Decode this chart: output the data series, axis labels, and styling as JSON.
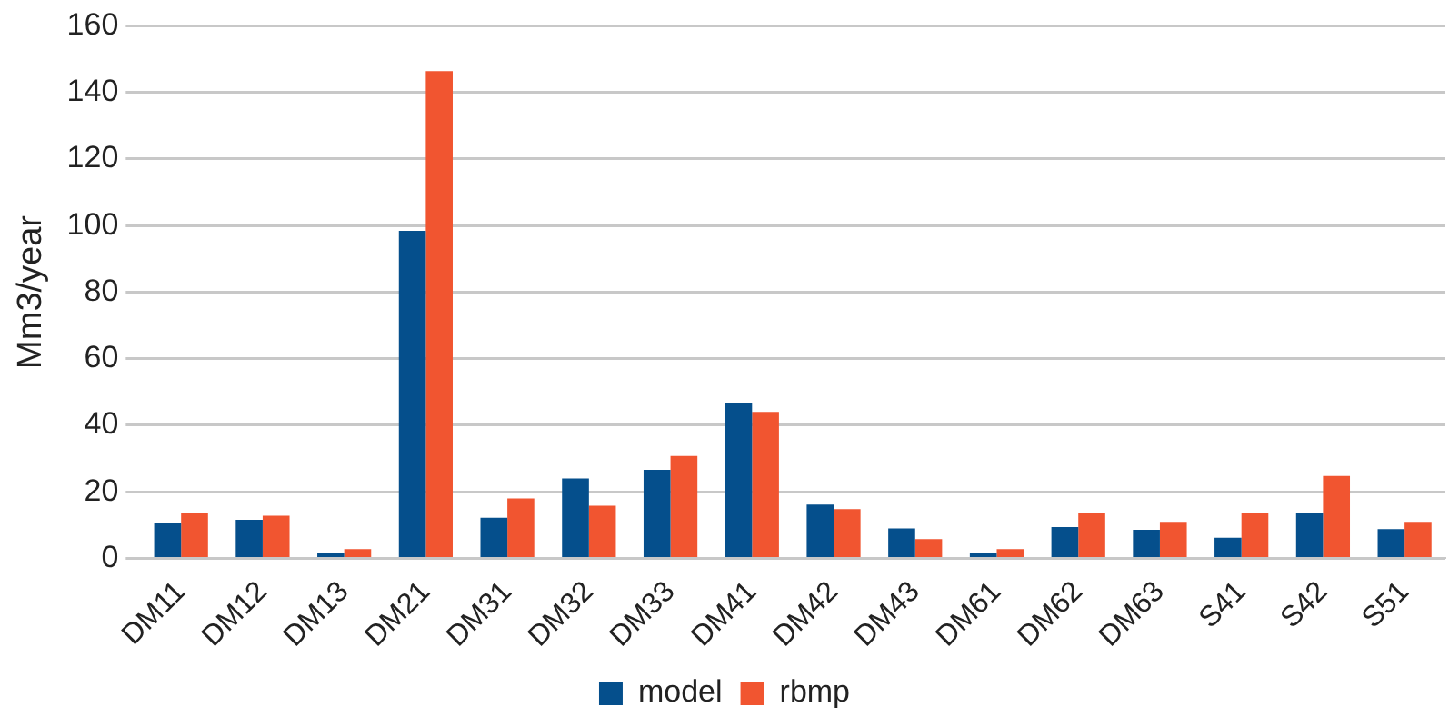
{
  "chart_data": {
    "type": "bar",
    "ylabel": "Mm3/year",
    "categories": [
      "DM11",
      "DM12",
      "DM13",
      "DM21",
      "DM31",
      "DM32",
      "DM33",
      "DM41",
      "DM42",
      "DM43",
      "DM61",
      "DM62",
      "DM63",
      "S41",
      "S42",
      "S51"
    ],
    "series": [
      {
        "name": "model",
        "color": "#054f8c",
        "values": [
          10.8,
          11.6,
          1.8,
          98.4,
          12.2,
          24,
          26.6,
          46.8,
          16.2,
          9,
          1.8,
          9.4,
          8.6,
          6.2,
          13.8,
          8.8
        ]
      },
      {
        "name": "rbmp",
        "color": "#f15530",
        "values": [
          13.8,
          12.8,
          2.8,
          146.4,
          18,
          15.8,
          30.8,
          44,
          14.8,
          5.8,
          2.8,
          13.8,
          11,
          13.8,
          24.8,
          11
        ]
      }
    ],
    "ylim": [
      0,
      160
    ],
    "yticks": [
      0,
      20,
      40,
      60,
      80,
      100,
      120,
      140,
      160
    ],
    "grid": "y",
    "legend": "bottom"
  }
}
